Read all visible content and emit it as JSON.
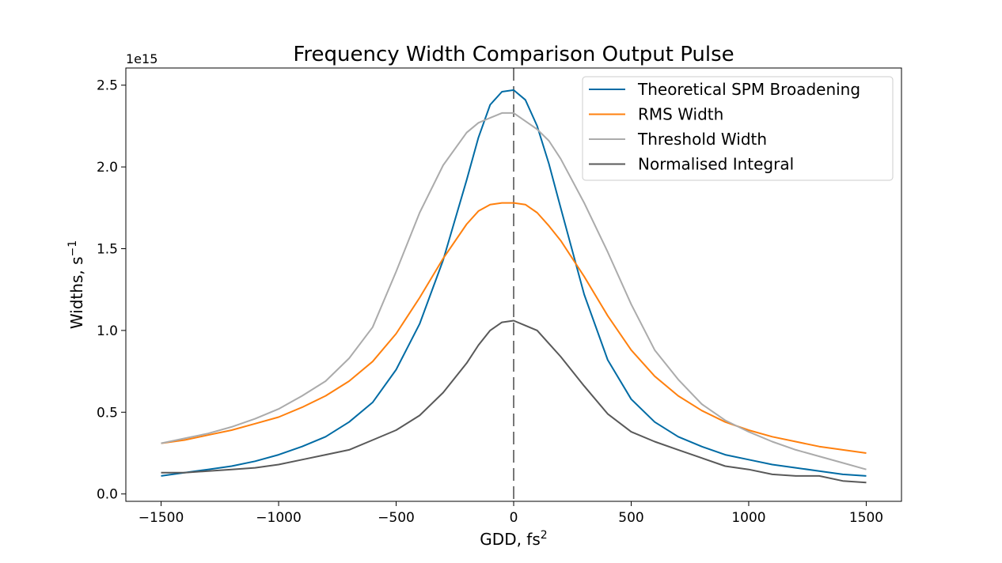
{
  "chart_data": {
    "type": "line",
    "title": "Frequency Width Comparison Output Pulse",
    "xlabel": "GDD, fs",
    "xlabel_sup": "2",
    "ylabel": "Widths, s",
    "ylabel_sup": "−1",
    "y_offset_label": "1e15",
    "xlim": [
      -1650,
      1650
    ],
    "ylim": [
      -0.045,
      2.605
    ],
    "xticks": [
      -1500,
      -1000,
      -500,
      0,
      500,
      1000,
      1500
    ],
    "xtick_labels": [
      "−1500",
      "−1000",
      "−500",
      "0",
      "500",
      "1000",
      "1500"
    ],
    "yticks": [
      0.0,
      0.5,
      1.0,
      1.5,
      2.0,
      2.5
    ],
    "ytick_labels": [
      "0.0",
      "0.5",
      "1.0",
      "1.5",
      "2.0",
      "2.5"
    ],
    "grid": false,
    "legend_position": "top-right",
    "vline": {
      "x": 0,
      "style": "dashed",
      "color": "#777777"
    },
    "x": [
      -1500,
      -1400,
      -1300,
      -1200,
      -1100,
      -1000,
      -900,
      -800,
      -700,
      -600,
      -500,
      -400,
      -300,
      -200,
      -150,
      -100,
      -50,
      0,
      50,
      100,
      150,
      200,
      300,
      400,
      500,
      600,
      700,
      800,
      900,
      1000,
      1100,
      1200,
      1300,
      1400,
      1500
    ],
    "series": [
      {
        "name": "Theoretical SPM Broadening",
        "color": "#006ba4",
        "values": [
          0.11,
          0.13,
          0.15,
          0.17,
          0.2,
          0.24,
          0.29,
          0.35,
          0.44,
          0.56,
          0.76,
          1.04,
          1.43,
          1.92,
          2.18,
          2.38,
          2.46,
          2.47,
          2.41,
          2.25,
          2.02,
          1.75,
          1.22,
          0.82,
          0.58,
          0.44,
          0.35,
          0.29,
          0.24,
          0.21,
          0.18,
          0.16,
          0.14,
          0.12,
          0.11
        ]
      },
      {
        "name": "RMS Width",
        "color": "#ff800e",
        "values": [
          0.31,
          0.33,
          0.36,
          0.39,
          0.43,
          0.47,
          0.53,
          0.6,
          0.69,
          0.81,
          0.98,
          1.2,
          1.44,
          1.65,
          1.73,
          1.77,
          1.78,
          1.78,
          1.77,
          1.72,
          1.64,
          1.55,
          1.33,
          1.09,
          0.88,
          0.72,
          0.6,
          0.51,
          0.44,
          0.39,
          0.35,
          0.32,
          0.29,
          0.27,
          0.25
        ]
      },
      {
        "name": "Threshold Width",
        "color": "#ababab",
        "values": [
          0.31,
          0.34,
          0.37,
          0.41,
          0.46,
          0.52,
          0.6,
          0.69,
          0.83,
          1.02,
          1.36,
          1.72,
          2.01,
          2.21,
          2.27,
          2.3,
          2.33,
          2.33,
          2.28,
          2.23,
          2.16,
          2.05,
          1.78,
          1.48,
          1.16,
          0.88,
          0.7,
          0.55,
          0.45,
          0.38,
          0.32,
          0.27,
          0.23,
          0.19,
          0.15
        ]
      },
      {
        "name": "Normalised Integral",
        "color": "#595959",
        "values": [
          0.13,
          0.13,
          0.14,
          0.15,
          0.16,
          0.18,
          0.21,
          0.24,
          0.27,
          0.33,
          0.39,
          0.48,
          0.62,
          0.8,
          0.91,
          1.0,
          1.05,
          1.06,
          1.03,
          1.0,
          0.92,
          0.84,
          0.66,
          0.49,
          0.38,
          0.32,
          0.27,
          0.22,
          0.17,
          0.15,
          0.12,
          0.11,
          0.11,
          0.08,
          0.07
        ]
      }
    ]
  }
}
